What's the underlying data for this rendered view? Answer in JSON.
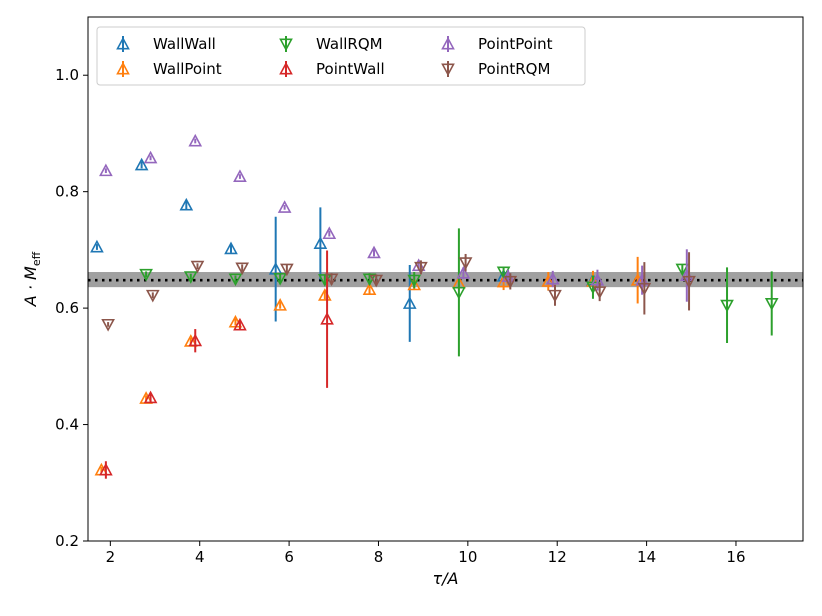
{
  "chart_data": {
    "type": "scatter",
    "title": "",
    "xlabel": "τ/A",
    "ylabel": "A · M_eff",
    "ylabel_parts": {
      "prefix": "A · ",
      "main": "M",
      "sub": "eff"
    },
    "xlim": [
      1.5,
      17.5
    ],
    "ylim": [
      0.2,
      1.1
    ],
    "xticks": [
      2,
      4,
      6,
      8,
      10,
      12,
      14,
      16
    ],
    "yticks": [
      0.2,
      0.4,
      0.6,
      0.8,
      1.0
    ],
    "xtick_labels": [
      "2",
      "4",
      "6",
      "8",
      "10",
      "12",
      "14",
      "16"
    ],
    "ytick_labels": [
      "0.2",
      "0.4",
      "0.6",
      "0.8",
      "1.0"
    ],
    "legend_position": "top-left",
    "band": {
      "center": 0.648,
      "low": 0.636,
      "high": 0.662,
      "color": "#808080"
    },
    "series": [
      {
        "name": "WallWall",
        "color": "#1f77b4",
        "marker": "triangle-up",
        "points": [
          {
            "x": 1.7,
            "y": 0.705,
            "err": 0.005
          },
          {
            "x": 2.7,
            "y": 0.846,
            "err": 0.006
          },
          {
            "x": 3.7,
            "y": 0.777,
            "err": 0.007
          },
          {
            "x": 4.7,
            "y": 0.702,
            "err": 0.007
          },
          {
            "x": 5.7,
            "y": 0.667,
            "err": 0.09
          },
          {
            "x": 6.7,
            "y": 0.711,
            "err": 0.062
          },
          {
            "x": 8.7,
            "y": 0.608,
            "err": 0.066
          },
          {
            "x": 10.8,
            "y": 0.655,
            "err": 0.008
          },
          {
            "x": 12.8,
            "y": 0.648,
            "err": 0.008
          }
        ]
      },
      {
        "name": "WallPoint",
        "color": "#ff7f0e",
        "marker": "triangle-up",
        "points": [
          {
            "x": 1.8,
            "y": 0.322,
            "err": 0.005
          },
          {
            "x": 2.8,
            "y": 0.445,
            "err": 0.005
          },
          {
            "x": 3.8,
            "y": 0.543,
            "err": 0.006
          },
          {
            "x": 4.8,
            "y": 0.576,
            "err": 0.006
          },
          {
            "x": 5.8,
            "y": 0.605,
            "err": 0.006
          },
          {
            "x": 6.8,
            "y": 0.622,
            "err": 0.007
          },
          {
            "x": 7.8,
            "y": 0.632,
            "err": 0.008
          },
          {
            "x": 8.8,
            "y": 0.64,
            "err": 0.009
          },
          {
            "x": 9.8,
            "y": 0.643,
            "err": 0.012
          },
          {
            "x": 10.8,
            "y": 0.645,
            "err": 0.014
          },
          {
            "x": 11.8,
            "y": 0.646,
            "err": 0.016
          },
          {
            "x": 12.8,
            "y": 0.646,
            "err": 0.018
          },
          {
            "x": 13.8,
            "y": 0.648,
            "err": 0.04
          }
        ]
      },
      {
        "name": "WallRQM",
        "color": "#2ca02c",
        "marker": "triangle-down",
        "points": [
          {
            "x": 2.8,
            "y": 0.658,
            "err": 0.005
          },
          {
            "x": 3.8,
            "y": 0.654,
            "err": 0.005
          },
          {
            "x": 4.8,
            "y": 0.65,
            "err": 0.006
          },
          {
            "x": 5.8,
            "y": 0.651,
            "err": 0.007
          },
          {
            "x": 6.8,
            "y": 0.649,
            "err": 0.009
          },
          {
            "x": 7.8,
            "y": 0.65,
            "err": 0.01
          },
          {
            "x": 8.8,
            "y": 0.648,
            "err": 0.014
          },
          {
            "x": 9.8,
            "y": 0.627,
            "err": 0.11
          },
          {
            "x": 10.8,
            "y": 0.662,
            "err": 0.008
          },
          {
            "x": 12.8,
            "y": 0.636,
            "err": 0.02
          },
          {
            "x": 14.8,
            "y": 0.667,
            "err": 0.008
          },
          {
            "x": 15.8,
            "y": 0.605,
            "err": 0.065
          },
          {
            "x": 16.8,
            "y": 0.608,
            "err": 0.055
          }
        ]
      },
      {
        "name": "PointWall",
        "color": "#d62728",
        "marker": "triangle-up",
        "points": [
          {
            "x": 1.9,
            "y": 0.322,
            "err": 0.015
          },
          {
            "x": 2.9,
            "y": 0.446,
            "err": 0.007
          },
          {
            "x": 3.9,
            "y": 0.544,
            "err": 0.02
          },
          {
            "x": 4.9,
            "y": 0.571,
            "err": 0.008
          },
          {
            "x": 6.85,
            "y": 0.581,
            "err": 0.118
          }
        ]
      },
      {
        "name": "PointPoint",
        "color": "#9467bd",
        "marker": "triangle-up",
        "points": [
          {
            "x": 1.9,
            "y": 0.836,
            "err": 0.004
          },
          {
            "x": 2.9,
            "y": 0.858,
            "err": 0.004
          },
          {
            "x": 3.9,
            "y": 0.887,
            "err": 0.004
          },
          {
            "x": 4.9,
            "y": 0.826,
            "err": 0.004
          },
          {
            "x": 5.9,
            "y": 0.773,
            "err": 0.004
          },
          {
            "x": 6.9,
            "y": 0.728,
            "err": 0.005
          },
          {
            "x": 7.9,
            "y": 0.695,
            "err": 0.006
          },
          {
            "x": 8.9,
            "y": 0.673,
            "err": 0.008
          },
          {
            "x": 9.9,
            "y": 0.66,
            "err": 0.01
          },
          {
            "x": 10.9,
            "y": 0.654,
            "err": 0.012
          },
          {
            "x": 11.9,
            "y": 0.65,
            "err": 0.014
          },
          {
            "x": 12.9,
            "y": 0.648,
            "err": 0.018
          },
          {
            "x": 13.9,
            "y": 0.648,
            "err": 0.025
          },
          {
            "x": 14.9,
            "y": 0.656,
            "err": 0.045
          }
        ]
      },
      {
        "name": "PointRQM",
        "color": "#8c564b",
        "marker": "triangle-down",
        "points": [
          {
            "x": 1.95,
            "y": 0.572,
            "err": 0.004
          },
          {
            "x": 2.95,
            "y": 0.622,
            "err": 0.005
          },
          {
            "x": 3.95,
            "y": 0.672,
            "err": 0.005
          },
          {
            "x": 4.95,
            "y": 0.669,
            "err": 0.006
          },
          {
            "x": 5.95,
            "y": 0.667,
            "err": 0.007
          },
          {
            "x": 6.95,
            "y": 0.65,
            "err": 0.01
          },
          {
            "x": 7.95,
            "y": 0.648,
            "err": 0.01
          },
          {
            "x": 8.95,
            "y": 0.67,
            "err": 0.012
          },
          {
            "x": 9.95,
            "y": 0.678,
            "err": 0.015
          },
          {
            "x": 10.95,
            "y": 0.646,
            "err": 0.014
          },
          {
            "x": 11.95,
            "y": 0.622,
            "err": 0.018
          },
          {
            "x": 12.95,
            "y": 0.628,
            "err": 0.016
          },
          {
            "x": 13.95,
            "y": 0.634,
            "err": 0.045
          },
          {
            "x": 14.95,
            "y": 0.646,
            "err": 0.05
          }
        ]
      }
    ]
  }
}
